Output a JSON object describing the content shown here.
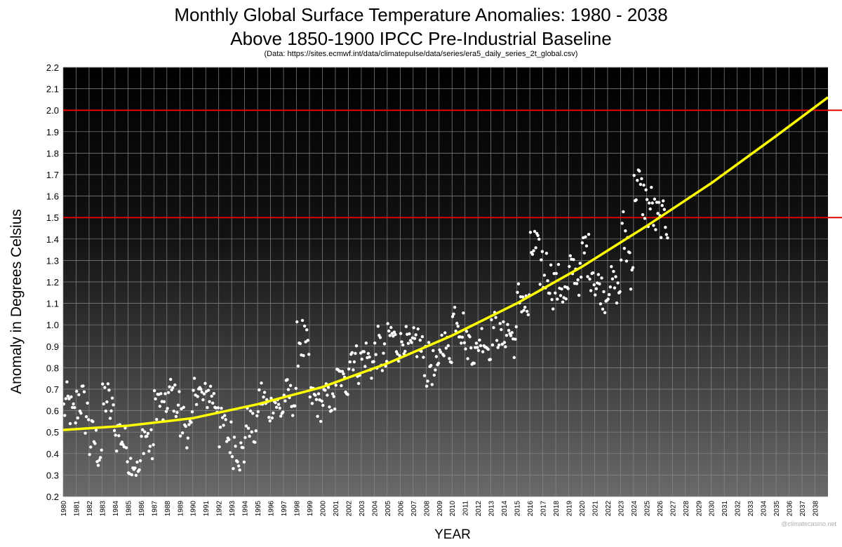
{
  "chart_data": {
    "type": "scatter",
    "title": "Monthly Global Surface Temperature Anomalies: 1980 - 2038",
    "subtitle": "Above 1850-1900 IPCC Pre-Industrial Baseline",
    "source": "(Data: https://sites.ecmwf.int/data/climatepulse/data/series/era5_daily_series_2t_global.csv)",
    "xlabel": "YEAR",
    "ylabel": "Anomaly in Degrees Celsius",
    "watermark": "@climatecasino.net",
    "xlim": [
      1980,
      2039
    ],
    "ylim": [
      0.2,
      2.2
    ],
    "yticks": [
      "0.2",
      "0.3",
      "0.4",
      "0.5",
      "0.6",
      "0.7",
      "0.8",
      "0.9",
      "1.0",
      "1.1",
      "1.2",
      "1.3",
      "1.4",
      "1.5",
      "1.6",
      "1.7",
      "1.8",
      "1.9",
      "2.0",
      "2.1",
      "2.2"
    ],
    "xticks": [
      "1980",
      "1981",
      "1982",
      "1983",
      "1984",
      "1985",
      "1986",
      "1987",
      "1988",
      "1989",
      "1990",
      "1991",
      "1992",
      "1993",
      "1994",
      "1995",
      "1996",
      "1997",
      "1998",
      "1999",
      "2000",
      "2001",
      "2002",
      "2003",
      "2004",
      "2005",
      "2006",
      "2007",
      "2008",
      "2009",
      "2010",
      "2011",
      "2012",
      "2013",
      "2014",
      "2015",
      "2016",
      "2017",
      "2018",
      "2019",
      "2020",
      "2021",
      "2022",
      "2023",
      "2024",
      "2025",
      "2026",
      "2027",
      "2028",
      "2029",
      "2030",
      "2031",
      "2032",
      "2033",
      "2034",
      "2035",
      "2036",
      "2037",
      "2038"
    ],
    "grid": true,
    "background": "dark gradient (black top to grey bottom)",
    "reference_lines": [
      {
        "y": 1.5,
        "color": "#e00000"
      },
      {
        "y": 2.0,
        "color": "#e00000"
      }
    ],
    "trend": {
      "type": "quadratic",
      "color": "#ffff00",
      "x": [
        1980,
        1985,
        1990,
        1995,
        2000,
        2005,
        2010,
        2015,
        2020,
        2025,
        2030,
        2035,
        2039
      ],
      "y": [
        0.51,
        0.53,
        0.565,
        0.63,
        0.71,
        0.82,
        0.95,
        1.1,
        1.27,
        1.46,
        1.66,
        1.88,
        2.06
      ]
    },
    "annual_anomaly": {
      "color": "#ffffff",
      "x": [
        1980,
        1981,
        1982,
        1983,
        1984,
        1985,
        1986,
        1987,
        1988,
        1989,
        1990,
        1991,
        1992,
        1993,
        1994,
        1995,
        1996,
        1997,
        1998,
        1999,
        2000,
        2001,
        2002,
        2003,
        2004,
        2005,
        2006,
        2007,
        2008,
        2009,
        2010,
        2011,
        2012,
        2013,
        2014,
        2015,
        2016,
        2017,
        2018,
        2019,
        2020,
        2021,
        2022,
        2023,
        2024,
        2025,
        2026
      ],
      "y": [
        0.6,
        0.62,
        0.44,
        0.62,
        0.47,
        0.34,
        0.46,
        0.62,
        0.66,
        0.52,
        0.68,
        0.66,
        0.5,
        0.42,
        0.52,
        0.64,
        0.62,
        0.66,
        0.9,
        0.64,
        0.65,
        0.74,
        0.84,
        0.84,
        0.86,
        0.93,
        0.91,
        0.89,
        0.79,
        0.9,
        1.02,
        0.89,
        0.92,
        0.96,
        0.95,
        1.1,
        1.32,
        1.22,
        1.16,
        1.24,
        1.31,
        1.16,
        1.18,
        1.36,
        1.62,
        1.52,
        1.47
      ],
      "spread": [
        0.1,
        0.12,
        0.1,
        0.11,
        0.09,
        0.06,
        0.09,
        0.09,
        0.08,
        0.1,
        0.08,
        0.08,
        0.09,
        0.11,
        0.08,
        0.09,
        0.07,
        0.07,
        0.12,
        0.07,
        0.06,
        0.06,
        0.09,
        0.08,
        0.1,
        0.08,
        0.07,
        0.1,
        0.1,
        0.07,
        0.1,
        0.08,
        0.07,
        0.08,
        0.08,
        0.1,
        0.12,
        0.11,
        0.1,
        0.08,
        0.12,
        0.08,
        0.07,
        0.15,
        0.11,
        0.11,
        0.08
      ]
    }
  }
}
